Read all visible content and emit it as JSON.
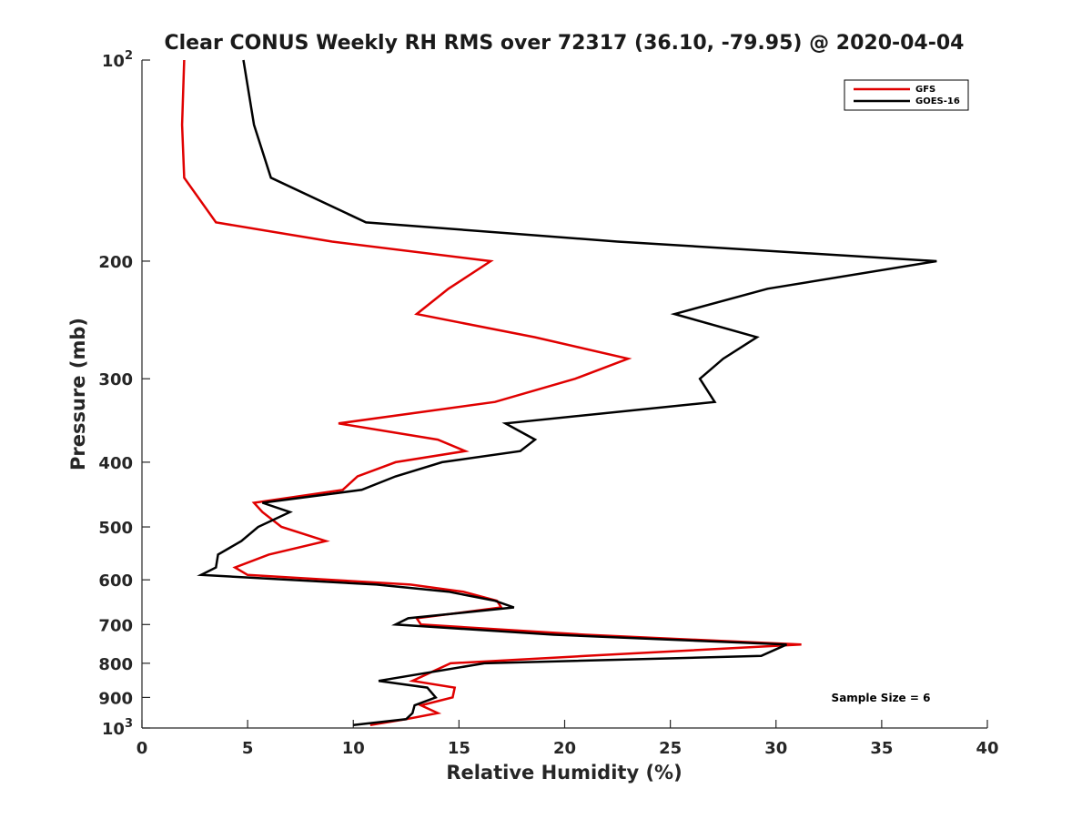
{
  "chart_data": {
    "type": "line",
    "title": "Clear CONUS Weekly RH RMS over 72317 (36.10, -79.95) @ 2020-04-04",
    "xlabel": "Relative Humidity (%)",
    "ylabel": "Pressure (mb)",
    "xlim": [
      0,
      40
    ],
    "ylim": [
      100,
      1000
    ],
    "y_scale": "log",
    "y_reversed": true,
    "x_ticks": [
      "0",
      "5",
      "10",
      "15",
      "20",
      "25",
      "30",
      "35",
      "40"
    ],
    "y_ticks": [
      {
        "value": 100,
        "label": "10",
        "sup": "2"
      },
      {
        "value": 200,
        "label": "200",
        "sup": ""
      },
      {
        "value": 300,
        "label": "300",
        "sup": ""
      },
      {
        "value": 400,
        "label": "400",
        "sup": ""
      },
      {
        "value": 500,
        "label": "500",
        "sup": ""
      },
      {
        "value": 600,
        "label": "600",
        "sup": ""
      },
      {
        "value": 700,
        "label": "700",
        "sup": ""
      },
      {
        "value": 800,
        "label": "800",
        "sup": ""
      },
      {
        "value": 900,
        "label": "900",
        "sup": ""
      },
      {
        "value": 1000,
        "label": "10",
        "sup": "3"
      }
    ],
    "legend_position": "top-right",
    "annotation": "Sample Size = 6",
    "series": [
      {
        "name": "GFS",
        "color": "#e00000",
        "points": [
          [
            2.0,
            100
          ],
          [
            1.9,
            125
          ],
          [
            2.0,
            150
          ],
          [
            3.5,
            175
          ],
          [
            9.0,
            187
          ],
          [
            16.5,
            200
          ],
          [
            14.5,
            220
          ],
          [
            13.0,
            240
          ],
          [
            18.6,
            260
          ],
          [
            23.0,
            280
          ],
          [
            20.5,
            300
          ],
          [
            16.7,
            325
          ],
          [
            9.3,
            350
          ],
          [
            14.0,
            370
          ],
          [
            15.3,
            385
          ],
          [
            12.0,
            400
          ],
          [
            10.2,
            420
          ],
          [
            9.5,
            440
          ],
          [
            5.3,
            460
          ],
          [
            5.7,
            475
          ],
          [
            6.6,
            500
          ],
          [
            8.7,
            525
          ],
          [
            6.0,
            550
          ],
          [
            4.4,
            575
          ],
          [
            5.0,
            590
          ],
          [
            12.7,
            610
          ],
          [
            15.2,
            625
          ],
          [
            16.8,
            645
          ],
          [
            17.0,
            660
          ],
          [
            13.0,
            685
          ],
          [
            13.2,
            700
          ],
          [
            21.0,
            725
          ],
          [
            31.2,
            750
          ],
          [
            21.0,
            780
          ],
          [
            14.6,
            800
          ],
          [
            12.8,
            850
          ],
          [
            14.8,
            870
          ],
          [
            14.7,
            900
          ],
          [
            13.2,
            925
          ],
          [
            14.0,
            950
          ],
          [
            12.5,
            970
          ],
          [
            10.8,
            990
          ]
        ]
      },
      {
        "name": "GOES-16",
        "color": "#000000",
        "points": [
          [
            4.8,
            100
          ],
          [
            5.3,
            125
          ],
          [
            6.1,
            150
          ],
          [
            10.6,
            175
          ],
          [
            22.5,
            187
          ],
          [
            37.6,
            200
          ],
          [
            29.6,
            220
          ],
          [
            25.2,
            240
          ],
          [
            29.1,
            260
          ],
          [
            27.5,
            280
          ],
          [
            26.4,
            300
          ],
          [
            27.1,
            325
          ],
          [
            17.2,
            350
          ],
          [
            18.6,
            370
          ],
          [
            17.9,
            385
          ],
          [
            14.2,
            400
          ],
          [
            12.0,
            420
          ],
          [
            10.4,
            440
          ],
          [
            5.7,
            460
          ],
          [
            7.0,
            475
          ],
          [
            5.5,
            500
          ],
          [
            4.7,
            525
          ],
          [
            3.6,
            550
          ],
          [
            3.5,
            575
          ],
          [
            2.8,
            590
          ],
          [
            11.1,
            610
          ],
          [
            14.5,
            625
          ],
          [
            16.7,
            645
          ],
          [
            17.6,
            660
          ],
          [
            12.6,
            685
          ],
          [
            12.0,
            700
          ],
          [
            19.5,
            725
          ],
          [
            30.5,
            750
          ],
          [
            29.3,
            780
          ],
          [
            16.2,
            800
          ],
          [
            11.2,
            850
          ],
          [
            13.5,
            870
          ],
          [
            13.9,
            900
          ],
          [
            12.9,
            925
          ],
          [
            12.8,
            950
          ],
          [
            12.5,
            970
          ],
          [
            10.0,
            990
          ]
        ]
      }
    ]
  }
}
